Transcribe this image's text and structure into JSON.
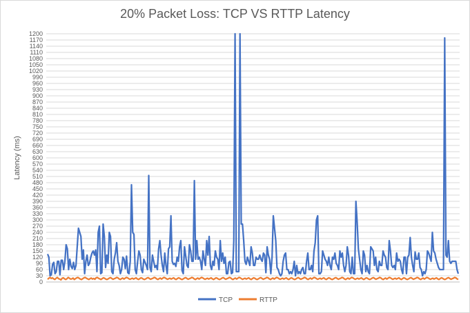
{
  "chart_data": {
    "type": "line",
    "title": "20% Packet Loss: TCP VS RTTP Latency",
    "xlabel": "",
    "ylabel": "Latency (ms)",
    "ylim": [
      0,
      1200
    ],
    "ytick_step": 30,
    "grid": true,
    "legend_position": "bottom",
    "series": [
      {
        "name": "TCP",
        "color": "#4472c4",
        "values": [
          135,
          120,
          30,
          35,
          85,
          95,
          40,
          50,
          100,
          100,
          35,
          105,
          105,
          60,
          100,
          180,
          160,
          60,
          110,
          75,
          65,
          95,
          60,
          80,
          170,
          260,
          240,
          220,
          110,
          155,
          40,
          100,
          130,
          80,
          90,
          120,
          140,
          150,
          130,
          155,
          50,
          240,
          270,
          40,
          45,
          280,
          220,
          70,
          130,
          90,
          240,
          220,
          50,
          40,
          110,
          140,
          190,
          100,
          80,
          40,
          60,
          120,
          110,
          65,
          125,
          45,
          40,
          100,
          470,
          240,
          230,
          60,
          40,
          100,
          150,
          130,
          60,
          45,
          110,
          95,
          80,
          60,
          515,
          70,
          50,
          130,
          100,
          70,
          80,
          60,
          160,
          200,
          130,
          80,
          50,
          140,
          80,
          40,
          160,
          170,
          320,
          100,
          85,
          90,
          75,
          120,
          100,
          170,
          200,
          55,
          40,
          170,
          125,
          80,
          70,
          180,
          150,
          100,
          100,
          490,
          110,
          200,
          110,
          120,
          100,
          60,
          150,
          110,
          80,
          200,
          130,
          220,
          80,
          60,
          100,
          80,
          150,
          120,
          110,
          60,
          200,
          100,
          140,
          90,
          120,
          40,
          40,
          95,
          100,
          40,
          45,
          200,
          1200,
          50,
          50,
          50,
          1200,
          280,
          280,
          200,
          100,
          85,
          120,
          100,
          80,
          170,
          140,
          80,
          80,
          120,
          110,
          110,
          130,
          110,
          100,
          140,
          130,
          45,
          170,
          130,
          110,
          40,
          120,
          320,
          260,
          200,
          70,
          60,
          40,
          30,
          40,
          100,
          130,
          140,
          60,
          60,
          40,
          50,
          40,
          60,
          100,
          30,
          80,
          40,
          50,
          40,
          60,
          70,
          40,
          40,
          100,
          140,
          60,
          60,
          80,
          50,
          150,
          190,
          300,
          320,
          40,
          40,
          50,
          150,
          130,
          110,
          100,
          80,
          120,
          80,
          60,
          120,
          110,
          140,
          90,
          80,
          60,
          150,
          120,
          140,
          80,
          50,
          80,
          170,
          130,
          50,
          40,
          120,
          40,
          40,
          390,
          290,
          160,
          110,
          60,
          40,
          150,
          130,
          50,
          80,
          50,
          40,
          170,
          160,
          150,
          80,
          120,
          60,
          50,
          100,
          80,
          80,
          150,
          130,
          120,
          70,
          60,
          200,
          150,
          80,
          70,
          80,
          60,
          140,
          100,
          110,
          100,
          60,
          40,
          120,
          120,
          40,
          120,
          130,
          215,
          120,
          80,
          50,
          145,
          110,
          110,
          140,
          70,
          60,
          30,
          50,
          40,
          60,
          150,
          140,
          120,
          100,
          240,
          150,
          140,
          110,
          90,
          70,
          60,
          60,
          60,
          60,
          1180,
          130,
          120,
          200,
          100,
          90,
          100,
          100,
          100,
          100,
          60,
          40
        ]
      },
      {
        "name": "RTTP",
        "color": "#ed7d31",
        "values": [
          13,
          18,
          22,
          17,
          20,
          15,
          12,
          18,
          22,
          16,
          14,
          10,
          18,
          20,
          15,
          12,
          16,
          22,
          18,
          14,
          15,
          19,
          12,
          16,
          20,
          22,
          18,
          14,
          12,
          16,
          20,
          22,
          18,
          15,
          12,
          16,
          19,
          14,
          17,
          13,
          20,
          22,
          18,
          15,
          12,
          16,
          20,
          18,
          14,
          12,
          15,
          19,
          21,
          17,
          13,
          16,
          18,
          22,
          20,
          15,
          12,
          16,
          19,
          14,
          18,
          22,
          20,
          16,
          13,
          16,
          18,
          14,
          17,
          20,
          15,
          12,
          16,
          20,
          18,
          14,
          12,
          15,
          19,
          21,
          17,
          13,
          16,
          18,
          22,
          20,
          15,
          12,
          16,
          19,
          14,
          18,
          22,
          20,
          16,
          13,
          16,
          18,
          14,
          17,
          20,
          15,
          12,
          16,
          20,
          18,
          14,
          12,
          15,
          19,
          21,
          17,
          13,
          16,
          18,
          22,
          20,
          15,
          12,
          16,
          19,
          14,
          18,
          22,
          20,
          16,
          13,
          16,
          18,
          14,
          17,
          20,
          15,
          12,
          16,
          20,
          18,
          14,
          12,
          15,
          19,
          21,
          17,
          13,
          16,
          18,
          22,
          20,
          15,
          12,
          16,
          19,
          14,
          18,
          22,
          20,
          16,
          13,
          16,
          18,
          14,
          17,
          20,
          15,
          12,
          16,
          20,
          18,
          14,
          12,
          15,
          19,
          21,
          17,
          13,
          16,
          18,
          22,
          20,
          15,
          12,
          16,
          19,
          14,
          18,
          22,
          20,
          16,
          13,
          16,
          18,
          14,
          17,
          20,
          15,
          12,
          16,
          20,
          18,
          14,
          12,
          15,
          19,
          21,
          17,
          13,
          16,
          18,
          22,
          20,
          15,
          12,
          16,
          19,
          14,
          18,
          22,
          20,
          16,
          13,
          16,
          18,
          14,
          17,
          20,
          15,
          12,
          16,
          20,
          18,
          14,
          12,
          15,
          19,
          21,
          17,
          13,
          16,
          18,
          22,
          20,
          15,
          12,
          16,
          19,
          14,
          18,
          22,
          20,
          16,
          13,
          16,
          18,
          14,
          17,
          20,
          15,
          12,
          16,
          20,
          18,
          14,
          12,
          15,
          19,
          21,
          17,
          13,
          16,
          18,
          22,
          20,
          15,
          12,
          16,
          19,
          14,
          18,
          22,
          20,
          16,
          13,
          16,
          18,
          14,
          17,
          20,
          15,
          12,
          16,
          20,
          18,
          14,
          12,
          15,
          19,
          21,
          17,
          13,
          16,
          18,
          22,
          20,
          15,
          12,
          16,
          19,
          14,
          18,
          22,
          20,
          16,
          13,
          16,
          18,
          14,
          17,
          20,
          15,
          12,
          16,
          20,
          18,
          14,
          12,
          15,
          19,
          21,
          17,
          13,
          16,
          18,
          22,
          20,
          15,
          12
        ]
      }
    ]
  }
}
